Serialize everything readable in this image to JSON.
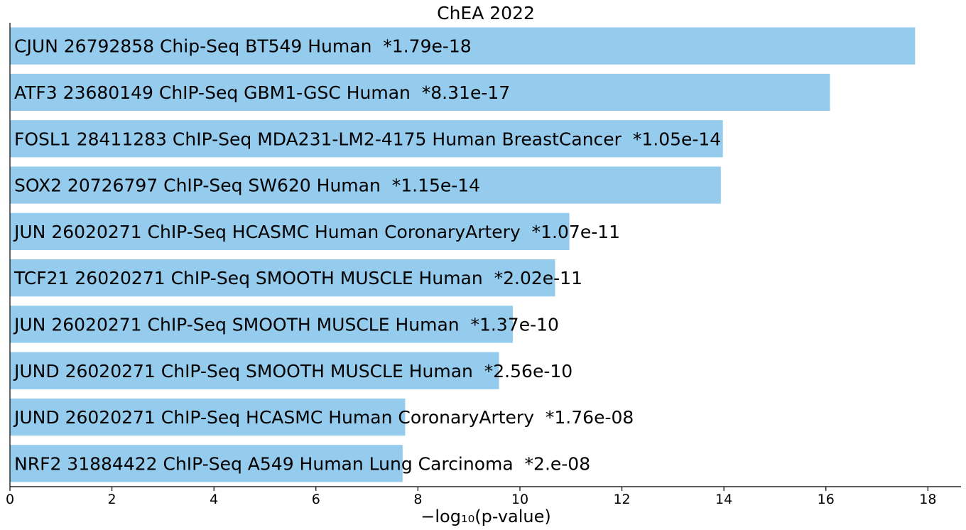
{
  "chart_data": {
    "type": "bar",
    "orientation": "horizontal",
    "title": "ChEA 2022",
    "xlabel": "−log₁₀(p-value)",
    "ylabel": "",
    "xlim": [
      0,
      18.65
    ],
    "xticks": [
      0,
      2,
      4,
      6,
      8,
      10,
      12,
      14,
      16,
      18
    ],
    "grid": false,
    "legend": "none",
    "bar_color": "#95cbed",
    "categories": [
      "CJUN 26792858 Chip-Seq BT549 Human  *1.79e-18",
      "ATF3 23680149 ChIP-Seq GBM1-GSC Human  *8.31e-17",
      "FOSL1 28411283 ChIP-Seq MDA231-LM2-4175 Human BreastCancer  *1.05e-14",
      "SOX2 20726797 ChIP-Seq SW620 Human  *1.15e-14",
      "JUN 26020271 ChIP-Seq HCASMC Human CoronaryArtery  *1.07e-11",
      "TCF21 26020271 ChIP-Seq SMOOTH MUSCLE Human  *2.02e-11",
      "JUN 26020271 ChIP-Seq SMOOTH MUSCLE Human  *1.37e-10",
      "JUND 26020271 ChIP-Seq SMOOTH MUSCLE Human  *2.56e-10",
      "JUND 26020271 ChIP-Seq HCASMC Human CoronaryArtery  *1.76e-08",
      "NRF2 31884422 ChIP-Seq A549 Human Lung Carcinoma  *2.e-08"
    ],
    "values": [
      17.75,
      16.08,
      13.98,
      13.94,
      10.97,
      10.69,
      9.86,
      9.59,
      7.75,
      7.7
    ]
  }
}
